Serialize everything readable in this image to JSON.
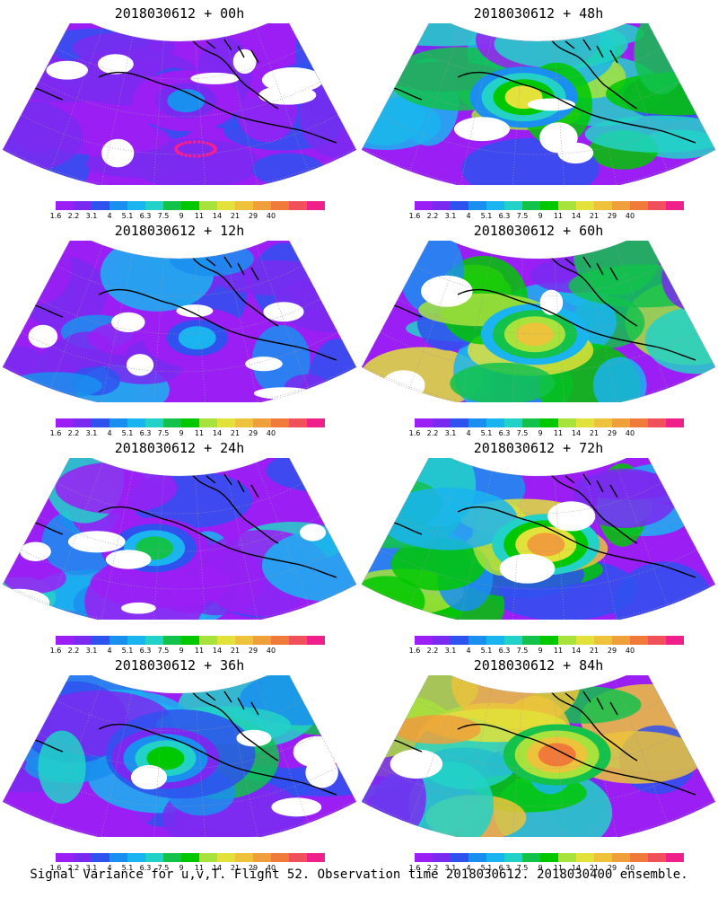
{
  "panels": [
    {
      "title": "2018030612 + 00h",
      "intensity": 0.08
    },
    {
      "title": "2018030612 + 48h",
      "intensity": 0.55
    },
    {
      "title": "2018030612 + 12h",
      "intensity": 0.18
    },
    {
      "title": "2018030612 + 60h",
      "intensity": 0.65
    },
    {
      "title": "2018030612 + 24h",
      "intensity": 0.3
    },
    {
      "title": "2018030612 + 72h",
      "intensity": 0.75
    },
    {
      "title": "2018030612 + 36h",
      "intensity": 0.4
    },
    {
      "title": "2018030612 + 84h",
      "intensity": 0.85
    }
  ],
  "colorbar": {
    "labels": [
      "1.6",
      "2.2",
      "3.1",
      "4",
      "5.1",
      "6.3",
      "7.5",
      "9",
      "11",
      "14",
      "21",
      "29",
      "40"
    ],
    "colors": [
      "#9b1ff5",
      "#7a2af0",
      "#2f51ee",
      "#1a8fef",
      "#1ab4f0",
      "#22d2c8",
      "#12c24b",
      "#00c800",
      "#a8e23c",
      "#e2e23a",
      "#ecc33b",
      "#f0a03a",
      "#f07a3a",
      "#f0505a",
      "#f0208a"
    ]
  },
  "caption": "Signal Variance for u,v,T. Flight 52. Observation time 2018030612. 2018030400 ensemble."
}
